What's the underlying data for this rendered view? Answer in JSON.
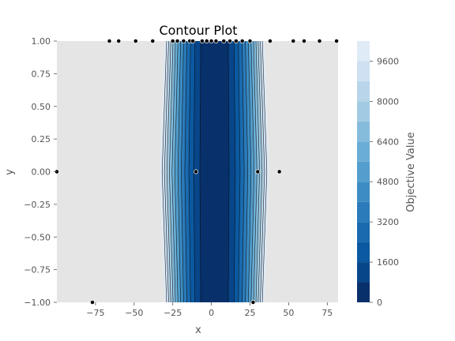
{
  "chart_data": {
    "type": "contour",
    "title": "Contour Plot",
    "xlabel": "x",
    "ylabel": "y",
    "colorbar_label": "Objective Value",
    "xlim": [
      -100,
      82
    ],
    "ylim": [
      -1.0,
      1.0
    ],
    "x_ticks": [
      -75,
      -50,
      -25,
      0,
      25,
      50,
      75
    ],
    "x_tick_labels": [
      "−75",
      "−50",
      "−25",
      "0",
      "25",
      "50",
      "75"
    ],
    "y_ticks": [
      -1.0,
      -0.75,
      -0.5,
      -0.25,
      0.0,
      0.25,
      0.5,
      0.75,
      1.0
    ],
    "y_tick_labels": [
      "−1.00",
      "−0.75",
      "−0.50",
      "−0.25",
      "0.00",
      "0.25",
      "0.50",
      "0.75",
      "1.00"
    ],
    "colorbar_range": [
      0,
      10400
    ],
    "colorbar_ticks": [
      0,
      1600,
      3200,
      4800,
      6400,
      8000,
      9600
    ],
    "colorbar_tick_labels": [
      "0",
      "1600",
      "3200",
      "4800",
      "6400",
      "8000",
      "9600"
    ],
    "levels": [
      0,
      800,
      1600,
      2400,
      3200,
      4000,
      4800,
      5600,
      6400,
      7200,
      8000,
      8800,
      9600,
      10400
    ],
    "colormap": "Blues",
    "band_colors": [
      "#08306b",
      "#08468a",
      "#0b59a1",
      "#1a6aaf",
      "#2b7bba",
      "#3d8dc4",
      "#539ecd",
      "#6aadd5",
      "#85bcdc",
      "#a1cbe2",
      "#b8d5ea",
      "#cee0f2",
      "#dfebf7",
      "#edf4fb"
    ],
    "model": "objective ≈ 10 × (x − 2)²",
    "no_data_color": "#e5e5e5",
    "sample_points": [
      {
        "x": -100,
        "y": 0.0
      },
      {
        "x": -10,
        "y": 0.0
      },
      {
        "x": 30,
        "y": 0.0
      },
      {
        "x": 44,
        "y": 0.0
      },
      {
        "x": -66,
        "y": 1.0
      },
      {
        "x": -60,
        "y": 1.0
      },
      {
        "x": -49,
        "y": 1.0
      },
      {
        "x": -38,
        "y": 1.0
      },
      {
        "x": -25,
        "y": 1.0
      },
      {
        "x": -22,
        "y": 1.0
      },
      {
        "x": -18,
        "y": 1.0
      },
      {
        "x": -14,
        "y": 1.0
      },
      {
        "x": -12,
        "y": 1.0
      },
      {
        "x": -6,
        "y": 1.0
      },
      {
        "x": -3,
        "y": 1.0
      },
      {
        "x": 0,
        "y": 1.0
      },
      {
        "x": 3,
        "y": 1.0
      },
      {
        "x": 8,
        "y": 1.0
      },
      {
        "x": 12,
        "y": 1.0
      },
      {
        "x": 16,
        "y": 1.0
      },
      {
        "x": 20,
        "y": 1.0
      },
      {
        "x": 25,
        "y": 1.0
      },
      {
        "x": 38,
        "y": 1.0
      },
      {
        "x": 53,
        "y": 1.0
      },
      {
        "x": 60,
        "y": 1.0
      },
      {
        "x": 70,
        "y": 1.0
      },
      {
        "x": 81,
        "y": 1.0
      },
      {
        "x": -77,
        "y": -1.0
      },
      {
        "x": 27,
        "y": -1.0
      }
    ]
  }
}
